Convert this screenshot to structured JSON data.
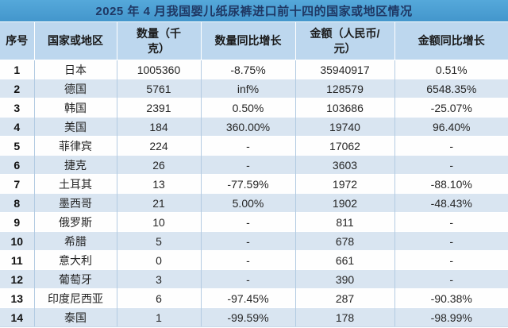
{
  "title": "2025 年 4 月我国婴儿纸尿裤进口前十四的国家或地区情况",
  "colors": {
    "title_bg_top": "#55a8da",
    "title_bg_bottom": "#4396cc",
    "title_text": "#1f3864",
    "header_bg": "#bdd7ee",
    "stripe_bg": "#d9e5f1",
    "row_bg": "#fefefe",
    "grid_line": "#b3cbe2",
    "body_text": "#262626"
  },
  "table": {
    "columns": [
      {
        "id": "index",
        "label_lines": [
          "序号"
        ]
      },
      {
        "id": "country",
        "label_lines": [
          "国家或地区"
        ]
      },
      {
        "id": "quantity-kg",
        "label_lines": [
          "数量（千",
          "克）"
        ]
      },
      {
        "id": "quantity-yoy",
        "label_lines": [
          "数量同比增长"
        ]
      },
      {
        "id": "amount-rmb",
        "label_lines": [
          "金额（人民币/",
          "元）"
        ]
      },
      {
        "id": "amount-yoy",
        "label_lines": [
          "金额同比增长"
        ]
      }
    ],
    "rows": [
      [
        "1",
        "日本",
        "1005360",
        "-8.75%",
        "35940917",
        "0.51%"
      ],
      [
        "2",
        "德国",
        "5761",
        "inf%",
        "128579",
        "6548.35%"
      ],
      [
        "3",
        "韩国",
        "2391",
        "0.50%",
        "103686",
        "-25.07%"
      ],
      [
        "4",
        "美国",
        "184",
        "360.00%",
        "19740",
        "96.40%"
      ],
      [
        "5",
        "菲律宾",
        "224",
        "-",
        "17062",
        "-"
      ],
      [
        "6",
        "捷克",
        "26",
        "-",
        "3603",
        "-"
      ],
      [
        "7",
        "土耳其",
        "13",
        "-77.59%",
        "1972",
        "-88.10%"
      ],
      [
        "8",
        "墨西哥",
        "21",
        "5.00%",
        "1902",
        "-48.43%"
      ],
      [
        "9",
        "俄罗斯",
        "10",
        "-",
        "811",
        "-"
      ],
      [
        "10",
        "希腊",
        "5",
        "-",
        "678",
        "-"
      ],
      [
        "11",
        "意大利",
        "0",
        "-",
        "661",
        "-"
      ],
      [
        "12",
        "葡萄牙",
        "3",
        "-",
        "390",
        "-"
      ],
      [
        "13",
        "印度尼西亚",
        "6",
        "-97.45%",
        "287",
        "-90.38%"
      ],
      [
        "14",
        "泰国",
        "1",
        "-99.59%",
        "178",
        "-98.99%"
      ]
    ]
  }
}
